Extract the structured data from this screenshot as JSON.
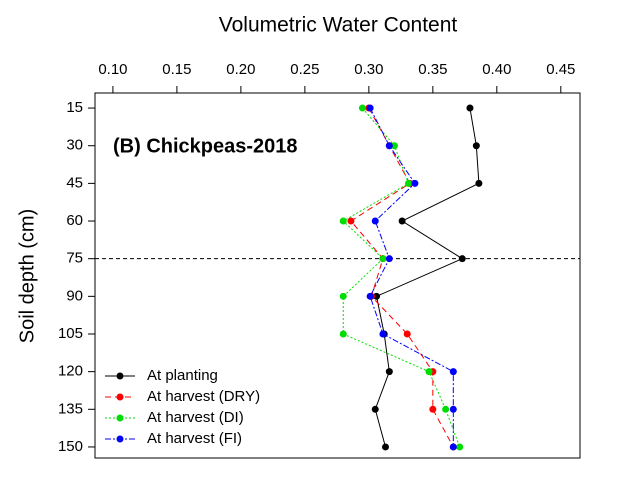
{
  "chart_data": {
    "type": "line",
    "title": "Volumetric Water Content",
    "ylabel": "Soil depth (cm)",
    "annotation": "(B) Chickpeas-2018",
    "y": [
      15,
      30,
      45,
      60,
      75,
      90,
      105,
      120,
      135,
      150
    ],
    "series": [
      {
        "name": "At planting",
        "color": "#000000",
        "dash": "none",
        "values": [
          0.379,
          0.384,
          0.386,
          0.326,
          0.373,
          0.306,
          0.312,
          0.316,
          0.305,
          0.313
        ]
      },
      {
        "name": "At harvest (DRY)",
        "color": "#ff0000",
        "dash": "6 4",
        "values": [
          0.3,
          0.316,
          0.332,
          0.286,
          0.311,
          0.302,
          0.33,
          0.35,
          0.35,
          0.366
        ]
      },
      {
        "name": "At harvest (DI)",
        "color": "#00dd00",
        "dash": "2 2",
        "values": [
          0.295,
          0.32,
          0.331,
          0.28,
          0.311,
          0.28,
          0.28,
          0.347,
          0.36,
          0.371
        ]
      },
      {
        "name": "At harvest (FI)",
        "color": "#0000ff",
        "dash": "6 2 2 2",
        "values": [
          0.301,
          0.316,
          0.336,
          0.305,
          0.316,
          0.301,
          0.311,
          0.366,
          0.366,
          0.366
        ]
      }
    ],
    "xlim": [
      0.086,
      0.465
    ],
    "xticks": [
      {
        "value": 0.1,
        "label": "0.10"
      },
      {
        "value": 0.15,
        "label": "0.15"
      },
      {
        "value": 0.2,
        "label": "0.20"
      },
      {
        "value": 0.25,
        "label": "0.25"
      },
      {
        "value": 0.3,
        "label": "0.30"
      },
      {
        "value": 0.35,
        "label": "0.35"
      },
      {
        "value": 0.4,
        "label": "0.40"
      },
      {
        "value": 0.45,
        "label": "0.45"
      }
    ],
    "ylim": [
      154.4,
      9.0
    ],
    "yticks": [
      15,
      30,
      45,
      60,
      75,
      90,
      105,
      120,
      135,
      150
    ],
    "hline": 75,
    "legend": "lower left"
  }
}
